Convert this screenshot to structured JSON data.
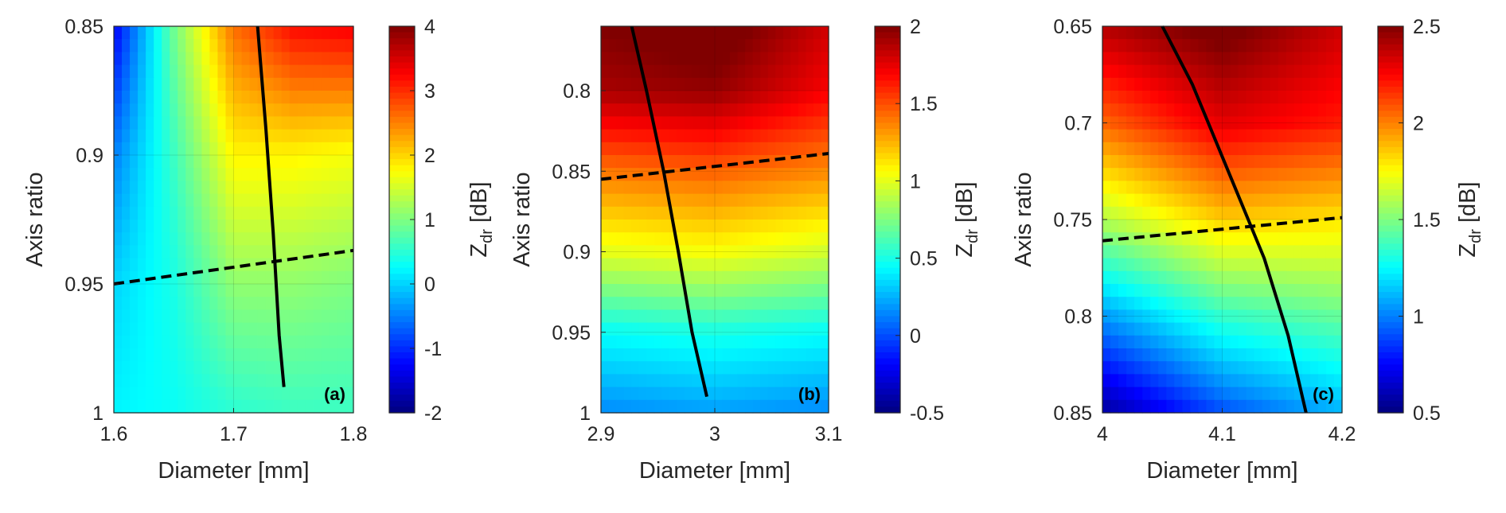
{
  "chart_data": [
    {
      "type": "heatmap",
      "panel_label": "(a)",
      "xlabel": "Diameter [mm]",
      "ylabel": "Axis ratio",
      "colorbar_label_main": "Z",
      "colorbar_label_sub": "dr",
      "colorbar_label_unit": " [dB]",
      "xlim": [
        1.6,
        1.8
      ],
      "ylim": [
        0.85,
        1.0
      ],
      "y_reversed": true,
      "clim": [
        -2,
        4
      ],
      "xticks": [
        "1.6",
        "1.7",
        "1.8"
      ],
      "xtick_values": [
        1.6,
        1.7,
        1.8
      ],
      "yticks": [
        "0.85",
        "0.9",
        "0.95",
        "1"
      ],
      "ytick_values": [
        0.85,
        0.9,
        0.95,
        1.0
      ],
      "cticks": [
        "4",
        "3",
        "2",
        "1",
        "0",
        "-1",
        "-2"
      ],
      "ctick_values": [
        4,
        3,
        2,
        1,
        0,
        -1,
        -2
      ],
      "colormap": "jet",
      "grid": true,
      "field_samples": {
        "x": [
          1.6,
          1.65,
          1.7,
          1.75,
          1.8
        ],
        "y": [
          0.85,
          0.9,
          0.95,
          1.0
        ],
        "z": [
          [
            -1.3,
            0.9,
            2.6,
            3.2,
            3.3
          ],
          [
            -0.5,
            0.6,
            1.8,
            1.8,
            1.7
          ],
          [
            0.0,
            0.4,
            1.1,
            1.1,
            1.0
          ],
          [
            0.2,
            0.3,
            0.5,
            0.6,
            0.6
          ]
        ]
      },
      "solid_line": {
        "x": [
          1.72,
          1.727,
          1.733,
          1.738,
          1.742
        ],
        "y": [
          0.85,
          0.89,
          0.93,
          0.97,
          0.99
        ]
      },
      "dashed_line": {
        "x": [
          1.6,
          1.8
        ],
        "y": [
          0.95,
          0.937
        ]
      }
    },
    {
      "type": "heatmap",
      "panel_label": "(b)",
      "xlabel": "Diameter [mm]",
      "ylabel": "Axis ratio",
      "colorbar_label_main": "Z",
      "colorbar_label_sub": "dr",
      "colorbar_label_unit": " [dB]",
      "xlim": [
        2.9,
        3.1
      ],
      "ylim": [
        0.76,
        1.0
      ],
      "y_reversed": true,
      "clim": [
        -0.5,
        2
      ],
      "xticks": [
        "2.9",
        "3",
        "3.1"
      ],
      "xtick_values": [
        2.9,
        3.0,
        3.1
      ],
      "yticks": [
        "0.8",
        "0.85",
        "0.9",
        "0.95",
        "1"
      ],
      "ytick_values": [
        0.8,
        0.85,
        0.9,
        0.95,
        1.0
      ],
      "cticks": [
        "2",
        "1.5",
        "1",
        "0.5",
        "0",
        "-0.5"
      ],
      "ctick_values": [
        2,
        1.5,
        1,
        0.5,
        0,
        -0.5
      ],
      "colormap": "jet",
      "grid": true,
      "field_samples": {
        "x": [
          2.9,
          3.0,
          3.1
        ],
        "y": [
          0.76,
          0.8,
          0.85,
          0.9,
          0.95,
          1.0
        ],
        "z": [
          [
            2.0,
            2.1,
            1.8
          ],
          [
            1.9,
            1.95,
            1.7
          ],
          [
            1.4,
            1.45,
            1.35
          ],
          [
            1.0,
            1.05,
            0.95
          ],
          [
            0.45,
            0.5,
            0.45
          ],
          [
            0.15,
            0.2,
            0.15
          ]
        ]
      },
      "solid_line": {
        "x": [
          2.927,
          2.94,
          2.955,
          2.968,
          2.98,
          2.993
        ],
        "y": [
          0.76,
          0.8,
          0.85,
          0.9,
          0.95,
          0.99
        ]
      },
      "dashed_line": {
        "x": [
          2.9,
          3.1
        ],
        "y": [
          0.855,
          0.839
        ]
      }
    },
    {
      "type": "heatmap",
      "panel_label": "(c)",
      "xlabel": "Diameter [mm]",
      "ylabel": "Axis ratio",
      "colorbar_label_main": "Z",
      "colorbar_label_sub": "dr",
      "colorbar_label_unit": " [dB]",
      "xlim": [
        4.0,
        4.2
      ],
      "ylim": [
        0.65,
        0.85
      ],
      "y_reversed": true,
      "clim": [
        0.5,
        2.5
      ],
      "xticks": [
        "4",
        "4.1",
        "4.2"
      ],
      "xtick_values": [
        4.0,
        4.1,
        4.2
      ],
      "yticks": [
        "0.65",
        "0.7",
        "0.75",
        "0.8",
        "0.85"
      ],
      "ytick_values": [
        0.65,
        0.7,
        0.75,
        0.8,
        0.85
      ],
      "cticks": [
        "2.5",
        "2",
        "1.5",
        "1",
        "0.5"
      ],
      "ctick_values": [
        2.5,
        2,
        1.5,
        1,
        0.5
      ],
      "colormap": "jet",
      "grid": true,
      "field_samples": {
        "x": [
          4.0,
          4.1,
          4.2
        ],
        "y": [
          0.65,
          0.7,
          0.75,
          0.8,
          0.85
        ],
        "z": [
          [
            2.4,
            2.55,
            2.35
          ],
          [
            2.05,
            2.3,
            2.2
          ],
          [
            1.6,
            1.85,
            1.8
          ],
          [
            1.05,
            1.35,
            1.45
          ],
          [
            0.55,
            0.9,
            1.1
          ]
        ]
      },
      "solid_line": {
        "x": [
          4.05,
          4.075,
          4.095,
          4.115,
          4.135,
          4.155,
          4.17
        ],
        "y": [
          0.65,
          0.68,
          0.71,
          0.74,
          0.77,
          0.81,
          0.85
        ]
      },
      "dashed_line": {
        "x": [
          4.0,
          4.2
        ],
        "y": [
          0.761,
          0.749
        ]
      }
    }
  ]
}
